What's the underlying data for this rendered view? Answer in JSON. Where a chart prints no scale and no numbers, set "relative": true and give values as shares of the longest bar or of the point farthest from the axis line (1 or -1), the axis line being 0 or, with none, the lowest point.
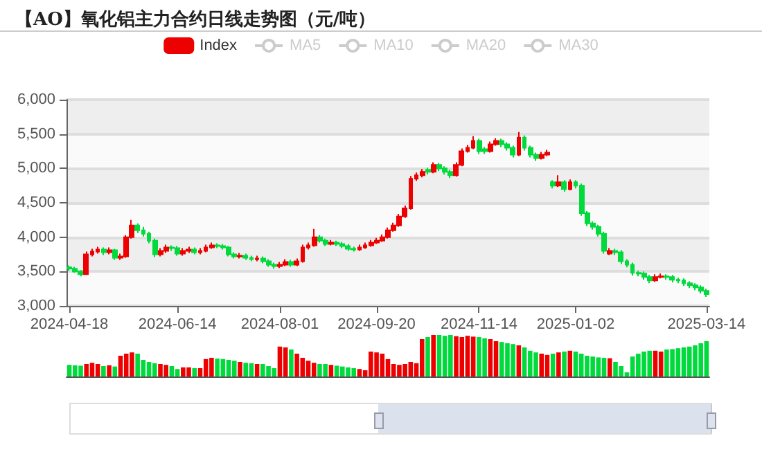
{
  "chart_data": [
    {
      "type": "candlestick",
      "title": "【AO】氧化铝主力合约日线走势图（元/吨）",
      "legend": "top",
      "grid": "y",
      "categories": [
        "2024-04-18",
        null,
        null,
        null,
        null,
        null,
        null,
        null,
        null,
        null,
        null,
        null,
        null,
        null,
        null,
        null,
        null,
        null,
        null,
        "2024-06-14",
        null,
        null,
        null,
        null,
        null,
        null,
        null,
        null,
        null,
        null,
        null,
        null,
        null,
        null,
        null,
        null,
        null,
        "2024-08-01",
        null,
        null,
        null,
        null,
        null,
        null,
        null,
        null,
        null,
        null,
        null,
        null,
        null,
        null,
        null,
        null,
        "2024-09-20",
        null,
        null,
        null,
        null,
        null,
        null,
        null,
        null,
        null,
        null,
        null,
        null,
        null,
        null,
        null,
        null,
        null,
        "2024-11-14",
        null,
        null,
        null,
        null,
        null,
        null,
        null,
        null,
        null,
        null,
        null,
        null,
        null,
        null,
        null,
        null,
        "2025-01-02",
        null,
        null,
        null,
        null,
        null,
        null,
        null,
        null,
        null,
        null,
        null,
        null,
        null,
        null,
        null,
        null,
        null,
        null,
        null,
        null,
        null,
        null,
        "2025-03-14"
      ],
      "series": [
        {
          "name": "Index",
          "type": "candlestick",
          "color": "#ec0000",
          "ohlc": [
            [
              3560,
              3590,
              3510,
              3540
            ],
            [
              3540,
              3570,
              3480,
              3500
            ],
            [
              3500,
              3520,
              3430,
              3460
            ],
            [
              3460,
              3790,
              3450,
              3750
            ],
            [
              3750,
              3830,
              3720,
              3790
            ],
            [
              3790,
              3860,
              3760,
              3820
            ],
            [
              3820,
              3850,
              3740,
              3780
            ],
            [
              3780,
              3850,
              3750,
              3810
            ],
            [
              3810,
              3830,
              3670,
              3700
            ],
            [
              3700,
              3760,
              3670,
              3720
            ],
            [
              3720,
              4030,
              3700,
              4000
            ],
            [
              4000,
              4250,
              3980,
              4170
            ],
            [
              4170,
              4200,
              4060,
              4100
            ],
            [
              4100,
              4150,
              4010,
              4050
            ],
            [
              4050,
              4080,
              3910,
              3950
            ],
            [
              3950,
              3980,
              3710,
              3750
            ],
            [
              3750,
              3840,
              3720,
              3800
            ],
            [
              3800,
              3890,
              3770,
              3850
            ],
            [
              3850,
              3880,
              3800,
              3840
            ],
            [
              3840,
              3870,
              3730,
              3760
            ],
            [
              3760,
              3840,
              3730,
              3800
            ],
            [
              3800,
              3860,
              3770,
              3820
            ],
            [
              3820,
              3850,
              3750,
              3780
            ],
            [
              3780,
              3840,
              3750,
              3800
            ],
            [
              3800,
              3890,
              3780,
              3850
            ],
            [
              3850,
              3920,
              3830,
              3880
            ],
            [
              3880,
              3910,
              3840,
              3870
            ],
            [
              3870,
              3900,
              3820,
              3850
            ],
            [
              3850,
              3870,
              3720,
              3750
            ],
            [
              3750,
              3780,
              3690,
              3720
            ],
            [
              3720,
              3770,
              3690,
              3730
            ],
            [
              3730,
              3760,
              3670,
              3700
            ],
            [
              3700,
              3730,
              3650,
              3680
            ],
            [
              3680,
              3730,
              3650,
              3690
            ],
            [
              3690,
              3720,
              3620,
              3650
            ],
            [
              3650,
              3680,
              3570,
              3600
            ],
            [
              3600,
              3630,
              3540,
              3580
            ],
            [
              3580,
              3640,
              3550,
              3600
            ],
            [
              3600,
              3680,
              3580,
              3640
            ],
            [
              3640,
              3670,
              3570,
              3600
            ],
            [
              3600,
              3690,
              3580,
              3650
            ],
            [
              3650,
              3890,
              3630,
              3850
            ],
            [
              3850,
              3920,
              3820,
              3880
            ],
            [
              3880,
              4120,
              3860,
              4000
            ],
            [
              4000,
              4030,
              3920,
              3950
            ],
            [
              3950,
              3980,
              3870,
              3900
            ],
            [
              3900,
              3960,
              3880,
              3920
            ],
            [
              3920,
              3950,
              3870,
              3900
            ],
            [
              3900,
              3930,
              3840,
              3870
            ],
            [
              3870,
              3900,
              3800,
              3830
            ],
            [
              3830,
              3860,
              3790,
              3820
            ],
            [
              3820,
              3890,
              3800,
              3850
            ],
            [
              3850,
              3920,
              3830,
              3880
            ],
            [
              3880,
              3960,
              3860,
              3920
            ],
            [
              3920,
              3990,
              3900,
              3950
            ],
            [
              3950,
              4040,
              3930,
              4000
            ],
            [
              4000,
              4140,
              3980,
              4100
            ],
            [
              4100,
              4210,
              4080,
              4170
            ],
            [
              4170,
              4340,
              4150,
              4300
            ],
            [
              4300,
              4460,
              4280,
              4420
            ],
            [
              4420,
              4890,
              4400,
              4850
            ],
            [
              4850,
              4940,
              4820,
              4900
            ],
            [
              4900,
              4990,
              4870,
              4950
            ],
            [
              4980,
              5010,
              4910,
              4950
            ],
            [
              4950,
              5090,
              4930,
              5050
            ],
            [
              5050,
              5080,
              4960,
              5000
            ],
            [
              5000,
              5030,
              4910,
              4950
            ],
            [
              4950,
              4980,
              4860,
              4900
            ],
            [
              4900,
              5090,
              4880,
              5050
            ],
            [
              5050,
              5290,
              5030,
              5250
            ],
            [
              5250,
              5340,
              5230,
              5300
            ],
            [
              5300,
              5470,
              5280,
              5400
            ],
            [
              5400,
              5430,
              5210,
              5250
            ],
            [
              5280,
              5310,
              5210,
              5250
            ],
            [
              5250,
              5390,
              5230,
              5350
            ],
            [
              5350,
              5440,
              5330,
              5400
            ],
            [
              5400,
              5430,
              5310,
              5350
            ],
            [
              5350,
              5380,
              5260,
              5300
            ],
            [
              5300,
              5330,
              5160,
              5200
            ],
            [
              5200,
              5530,
              5180,
              5450
            ],
            [
              5450,
              5480,
              5260,
              5300
            ],
            [
              5300,
              5330,
              5160,
              5200
            ],
            [
              5200,
              5230,
              5110,
              5150
            ],
            [
              5150,
              5240,
              5130,
              5200
            ],
            [
              5200,
              5270,
              5180,
              5230
            ],
            [
              4800,
              4830,
              4710,
              4750
            ],
            [
              4750,
              4900,
              4730,
              4800
            ],
            [
              4800,
              4830,
              4660,
              4700
            ],
            [
              4700,
              4840,
              4680,
              4800
            ],
            [
              4800,
              4830,
              4710,
              4750
            ],
            [
              4750,
              4780,
              4310,
              4350
            ],
            [
              4350,
              4380,
              4160,
              4200
            ],
            [
              4200,
              4230,
              4110,
              4150
            ],
            [
              4150,
              4180,
              4010,
              4050
            ],
            [
              4050,
              4080,
              3760,
              3800
            ],
            [
              3760,
              3840,
              3740,
              3800
            ],
            [
              3800,
              3830,
              3740,
              3780
            ],
            [
              3780,
              3810,
              3610,
              3650
            ],
            [
              3650,
              3680,
              3560,
              3600
            ],
            [
              3600,
              3630,
              3440,
              3480
            ],
            [
              3480,
              3510,
              3430,
              3470
            ],
            [
              3470,
              3500,
              3380,
              3420
            ],
            [
              3420,
              3450,
              3330,
              3370
            ],
            [
              3370,
              3460,
              3350,
              3420
            ],
            [
              3420,
              3470,
              3400,
              3430
            ],
            [
              3430,
              3460,
              3380,
              3420
            ],
            [
              3420,
              3450,
              3340,
              3380
            ],
            [
              3380,
              3410,
              3330,
              3370
            ],
            [
              3370,
              3400,
              3290,
              3330
            ],
            [
              3330,
              3360,
              3260,
              3300
            ],
            [
              3300,
              3330,
              3230,
              3270
            ],
            [
              3270,
              3300,
              3180,
              3220
            ],
            [
              3220,
              3250,
              3130,
              3170
            ]
          ],
          "colors": [
            "#00da3c",
            "#00da3c",
            "#00da3c",
            "#ec0000",
            "#ec0000",
            "#ec0000",
            "#00da3c",
            "#ec0000",
            "#00da3c",
            "#ec0000",
            "#ec0000",
            "#ec0000",
            "#00da3c",
            "#00da3c",
            "#00da3c",
            "#00da3c",
            "#ec0000",
            "#ec0000",
            "#00da3c",
            "#00da3c",
            "#ec0000",
            "#ec0000",
            "#00da3c",
            "#ec0000",
            "#ec0000",
            "#ec0000",
            "#00da3c",
            "#00da3c",
            "#00da3c",
            "#00da3c",
            "#ec0000",
            "#00da3c",
            "#00da3c",
            "#ec0000",
            "#00da3c",
            "#00da3c",
            "#00da3c",
            "#ec0000",
            "#ec0000",
            "#00da3c",
            "#ec0000",
            "#ec0000",
            "#ec0000",
            "#ec0000",
            "#00da3c",
            "#00da3c",
            "#ec0000",
            "#00da3c",
            "#00da3c",
            "#00da3c",
            "#00da3c",
            "#ec0000",
            "#ec0000",
            "#ec0000",
            "#ec0000",
            "#ec0000",
            "#ec0000",
            "#ec0000",
            "#ec0000",
            "#ec0000",
            "#ec0000",
            "#ec0000",
            "#ec0000",
            "#00da3c",
            "#ec0000",
            "#00da3c",
            "#00da3c",
            "#00da3c",
            "#ec0000",
            "#ec0000",
            "#ec0000",
            "#ec0000",
            "#00da3c",
            "#00da3c",
            "#ec0000",
            "#ec0000",
            "#00da3c",
            "#00da3c",
            "#00da3c",
            "#ec0000",
            "#00da3c",
            "#00da3c",
            "#00da3c",
            "#ec0000",
            "#ec0000",
            "#00da3c",
            "#ec0000",
            "#00da3c",
            "#ec0000",
            "#00da3c",
            "#00da3c",
            "#00da3c",
            "#00da3c",
            "#00da3c",
            "#00da3c",
            "#ec0000",
            "#00da3c",
            "#00da3c",
            "#00da3c",
            "#00da3c",
            "#00da3c",
            "#00da3c",
            "#00da3c",
            "#ec0000",
            "#ec0000",
            "#00da3c",
            "#00da3c",
            "#00da3c",
            "#00da3c",
            "#00da3c",
            "#00da3c",
            "#00da3c",
            "#00da3c"
          ]
        },
        {
          "name": "MA5",
          "type": "line",
          "color": "#cccccc",
          "values": [
            null,
            null,
            null,
            null,
            null,
            null,
            null,
            null,
            null,
            null,
            null,
            null,
            null,
            null,
            null,
            null,
            null,
            null,
            null,
            null,
            null,
            null,
            null,
            null,
            null,
            null,
            null,
            null,
            null,
            null,
            null,
            null,
            null,
            null,
            null,
            null,
            null,
            null,
            null,
            null,
            null,
            null,
            null,
            null,
            null,
            null,
            null,
            null,
            null,
            null,
            null,
            null,
            null,
            null,
            null,
            null,
            null,
            null,
            null,
            null,
            null,
            null,
            null,
            null,
            null,
            null,
            null,
            null,
            null,
            null,
            null,
            null,
            null,
            null,
            null,
            null,
            null,
            null,
            null,
            null,
            null,
            null,
            null,
            null,
            null,
            null,
            null,
            null,
            null,
            null,
            null,
            null,
            null,
            null,
            null,
            null,
            null,
            null,
            null,
            null,
            null,
            null,
            null,
            null,
            null,
            null,
            null,
            null,
            null,
            null,
            null,
            null,
            null
          ]
        },
        {
          "name": "MA10",
          "type": "line",
          "color": "#cccccc",
          "values": [
            null,
            null,
            null,
            null,
            null,
            null,
            null,
            null,
            null,
            null,
            null,
            null,
            null,
            null,
            null,
            null,
            null,
            null,
            null,
            null,
            null,
            null,
            null,
            null,
            null,
            null,
            null,
            null,
            null,
            null,
            null,
            null,
            null,
            null,
            null,
            null,
            null,
            null,
            null,
            null,
            null,
            null,
            null,
            null,
            null,
            null,
            null,
            null,
            null,
            null,
            null,
            null,
            null,
            null,
            null,
            null,
            null,
            null,
            null,
            null,
            null,
            null,
            null,
            null,
            null,
            null,
            null,
            null,
            null,
            null,
            null,
            null,
            null,
            null,
            null,
            null,
            null,
            null,
            null,
            null,
            null,
            null,
            null,
            null,
            null,
            null,
            null,
            null,
            null,
            null,
            null,
            null,
            null,
            null,
            null,
            null,
            null,
            null,
            null,
            null,
            null,
            null,
            null,
            null,
            null,
            null,
            null,
            null,
            null,
            null,
            null,
            null,
            null
          ]
        },
        {
          "name": "MA20",
          "type": "line",
          "color": "#cccccc",
          "values": [
            null,
            null,
            null,
            null,
            null,
            null,
            null,
            null,
            null,
            null,
            null,
            null,
            null,
            null,
            null,
            null,
            null,
            null,
            null,
            null,
            null,
            null,
            null,
            null,
            null,
            null,
            null,
            null,
            null,
            null,
            null,
            null,
            null,
            null,
            null,
            null,
            null,
            null,
            null,
            null,
            null,
            null,
            null,
            null,
            null,
            null,
            null,
            null,
            null,
            null,
            null,
            null,
            null,
            null,
            null,
            null,
            null,
            null,
            null,
            null,
            null,
            null,
            null,
            null,
            null,
            null,
            null,
            null,
            null,
            null,
            null,
            null,
            null,
            null,
            null,
            null,
            null,
            null,
            null,
            null,
            null,
            null,
            null,
            null,
            null,
            null,
            null,
            null,
            null,
            null,
            null,
            null,
            null,
            null,
            null,
            null,
            null,
            null,
            null,
            null,
            null,
            null,
            null,
            null,
            null,
            null,
            null,
            null,
            null,
            null,
            null,
            null,
            null
          ]
        },
        {
          "name": "MA30",
          "type": "line",
          "color": "#cccccc",
          "values": [
            null,
            null,
            null,
            null,
            null,
            null,
            null,
            null,
            null,
            null,
            null,
            null,
            null,
            null,
            null,
            null,
            null,
            null,
            null,
            null,
            null,
            null,
            null,
            null,
            null,
            null,
            null,
            null,
            null,
            null,
            null,
            null,
            null,
            null,
            null,
            null,
            null,
            null,
            null,
            null,
            null,
            null,
            null,
            null,
            null,
            null,
            null,
            null,
            null,
            null,
            null,
            null,
            null,
            null,
            null,
            null,
            null,
            null,
            null,
            null,
            null,
            null,
            null,
            null,
            null,
            null,
            null,
            null,
            null,
            null,
            null,
            null,
            null,
            null,
            null,
            null,
            null,
            null,
            null,
            null,
            null,
            null,
            null,
            null,
            null,
            null,
            null,
            null,
            null,
            null,
            null,
            null,
            null,
            null,
            null,
            null,
            null,
            null,
            null,
            null,
            null,
            null,
            null,
            null,
            null,
            null,
            null,
            null,
            null,
            null,
            null,
            null,
            null
          ]
        }
      ],
      "ylim": [
        3000,
        6000
      ],
      "yticks": [
        {
          "value": 3000,
          "label": "3,000"
        },
        {
          "value": 3500,
          "label": "3,500"
        },
        {
          "value": 4000,
          "label": "4,000"
        },
        {
          "value": 4500,
          "label": "4,500"
        },
        {
          "value": 5000,
          "label": "5,000"
        },
        {
          "value": 5500,
          "label": "5,500"
        },
        {
          "value": 6000,
          "label": "6,000"
        }
      ]
    },
    {
      "type": "bar",
      "relative": true,
      "tick_labels": false,
      "categories": [
        null,
        null,
        null,
        null,
        null,
        null,
        null,
        null,
        null,
        null,
        null,
        null,
        null,
        null,
        null,
        null,
        null,
        null,
        null,
        null,
        null,
        null,
        null,
        null,
        null,
        null,
        null,
        null,
        null,
        null,
        null,
        null,
        null,
        null,
        null,
        null,
        null,
        null,
        null,
        null,
        null,
        null,
        null,
        null,
        null,
        null,
        null,
        null,
        null,
        null,
        null,
        null,
        null,
        null,
        null,
        null,
        null,
        null,
        null,
        null,
        null,
        null,
        null,
        null,
        null,
        null,
        null,
        null,
        null,
        null,
        null,
        null,
        null,
        null,
        null,
        null,
        null,
        null,
        null,
        null,
        null,
        null,
        null,
        null,
        null,
        null,
        null,
        null,
        null,
        null,
        null,
        null,
        null,
        null,
        null,
        null,
        null,
        null,
        null,
        null,
        null,
        null,
        null,
        null,
        null,
        null,
        null,
        null,
        null,
        null,
        null,
        null,
        null
      ],
      "values": [
        0.28,
        0.27,
        0.26,
        0.3,
        0.33,
        0.3,
        0.25,
        0.27,
        0.24,
        0.5,
        0.55,
        0.58,
        0.55,
        0.4,
        0.35,
        0.32,
        0.3,
        0.28,
        0.25,
        0.18,
        0.22,
        0.22,
        0.2,
        0.2,
        0.42,
        0.45,
        0.43,
        0.42,
        0.4,
        0.38,
        0.35,
        0.33,
        0.32,
        0.3,
        0.3,
        0.25,
        0.2,
        0.72,
        0.7,
        0.65,
        0.55,
        0.45,
        0.38,
        0.33,
        0.3,
        0.3,
        0.28,
        0.26,
        0.24,
        0.22,
        0.2,
        0.18,
        0.15,
        0.6,
        0.58,
        0.55,
        0.42,
        0.3,
        0.28,
        0.3,
        0.35,
        0.32,
        0.9,
        0.95,
        1,
        1,
        0.98,
        1,
        0.97,
        0.95,
        0.98,
        0.96,
        0.95,
        0.92,
        0.9,
        0.85,
        0.83,
        0.8,
        0.78,
        0.75,
        0.7,
        0.62,
        0.58,
        0.55,
        0.52,
        0.55,
        0.58,
        0.6,
        0.62,
        0.6,
        0.55,
        0.5,
        0.48,
        0.46,
        0.45,
        0.44,
        0.35,
        0.25,
        0.1,
        0.48,
        0.55,
        0.6,
        0.62,
        0.62,
        0.6,
        0.65,
        0.66,
        0.68,
        0.7,
        0.72,
        0.75,
        0.8,
        0.85
      ],
      "colors": [
        "#00da3c",
        "#00da3c",
        "#00da3c",
        "#ec0000",
        "#ec0000",
        "#ec0000",
        "#00da3c",
        "#ec0000",
        "#00da3c",
        "#ec0000",
        "#ec0000",
        "#ec0000",
        "#00da3c",
        "#00da3c",
        "#00da3c",
        "#00da3c",
        "#ec0000",
        "#ec0000",
        "#00da3c",
        "#00da3c",
        "#ec0000",
        "#ec0000",
        "#00da3c",
        "#ec0000",
        "#ec0000",
        "#ec0000",
        "#00da3c",
        "#00da3c",
        "#00da3c",
        "#00da3c",
        "#ec0000",
        "#00da3c",
        "#00da3c",
        "#ec0000",
        "#00da3c",
        "#00da3c",
        "#00da3c",
        "#ec0000",
        "#ec0000",
        "#00da3c",
        "#ec0000",
        "#ec0000",
        "#ec0000",
        "#ec0000",
        "#00da3c",
        "#00da3c",
        "#ec0000",
        "#00da3c",
        "#00da3c",
        "#00da3c",
        "#00da3c",
        "#ec0000",
        "#ec0000",
        "#ec0000",
        "#ec0000",
        "#ec0000",
        "#ec0000",
        "#ec0000",
        "#ec0000",
        "#ec0000",
        "#ec0000",
        "#ec0000",
        "#ec0000",
        "#00da3c",
        "#ec0000",
        "#00da3c",
        "#00da3c",
        "#00da3c",
        "#ec0000",
        "#ec0000",
        "#ec0000",
        "#ec0000",
        "#00da3c",
        "#00da3c",
        "#ec0000",
        "#ec0000",
        "#00da3c",
        "#00da3c",
        "#00da3c",
        "#ec0000",
        "#00da3c",
        "#00da3c",
        "#00da3c",
        "#ec0000",
        "#ec0000",
        "#00da3c",
        "#ec0000",
        "#00da3c",
        "#ec0000",
        "#00da3c",
        "#00da3c",
        "#00da3c",
        "#00da3c",
        "#00da3c",
        "#00da3c",
        "#ec0000",
        "#00da3c",
        "#00da3c",
        "#00da3c",
        "#00da3c",
        "#00da3c",
        "#00da3c",
        "#00da3c",
        "#ec0000",
        "#ec0000",
        "#00da3c",
        "#00da3c",
        "#00da3c",
        "#00da3c",
        "#00da3c",
        "#00da3c",
        "#00da3c",
        "#00da3c"
      ]
    }
  ]
}
